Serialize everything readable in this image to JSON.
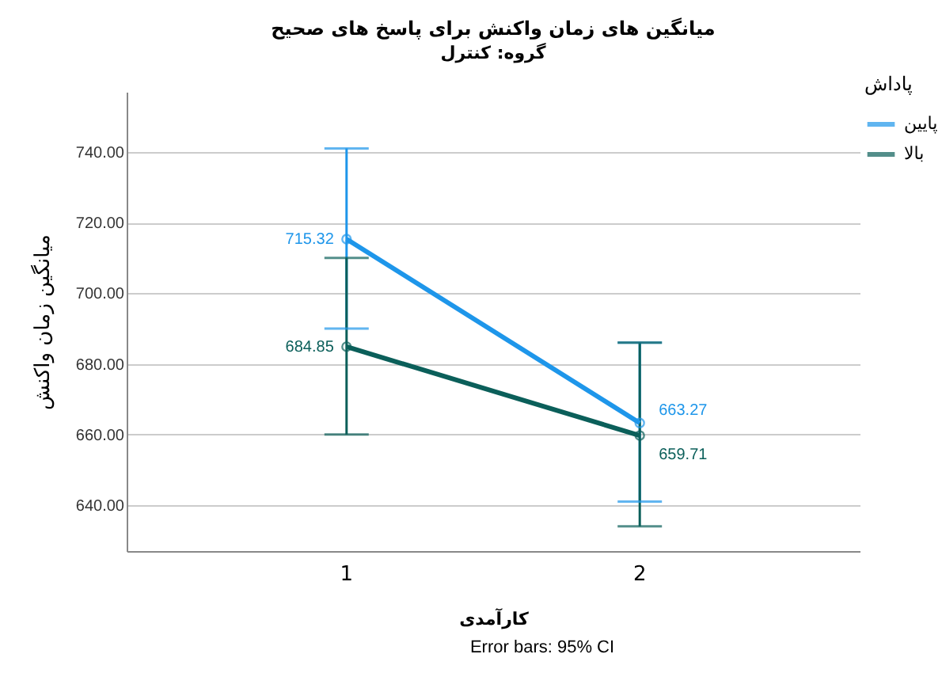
{
  "chart_data": {
    "type": "line",
    "title": "میانگین های زمان واکنش برای پاسخ های صحیح",
    "subtitle": "گروه: کنترل",
    "xlabel": "کارآمدی",
    "ylabel": "میانگین زمان واکنش",
    "legend_title": "پاداش",
    "categories": [
      "1",
      "2"
    ],
    "series": [
      {
        "name": "پایین",
        "color": "#1e96ea",
        "values": [
          715.32,
          663.27
        ],
        "errors": [
          [
            690,
            741
          ],
          [
            641,
            686
          ]
        ]
      },
      {
        "name": "بالا",
        "color": "#0b5f5a",
        "values": [
          684.85,
          659.71
        ],
        "errors": [
          [
            660,
            710
          ],
          [
            634,
            686
          ]
        ]
      }
    ],
    "ylim": [
      627,
      757
    ],
    "yticks": [
      {
        "value": 640,
        "label": "640.00"
      },
      {
        "value": 660,
        "label": "660.00"
      },
      {
        "value": 680,
        "label": "680.00"
      },
      {
        "value": 700,
        "label": "700.00"
      },
      {
        "value": 720,
        "label": "720.00"
      },
      {
        "value": 740,
        "label": "740.00"
      }
    ],
    "grid": "y",
    "legend": "top right",
    "marker": "circle",
    "line_style": "solid",
    "data_labels": true,
    "annotations": [
      "Error bars: 95% CI"
    ]
  }
}
